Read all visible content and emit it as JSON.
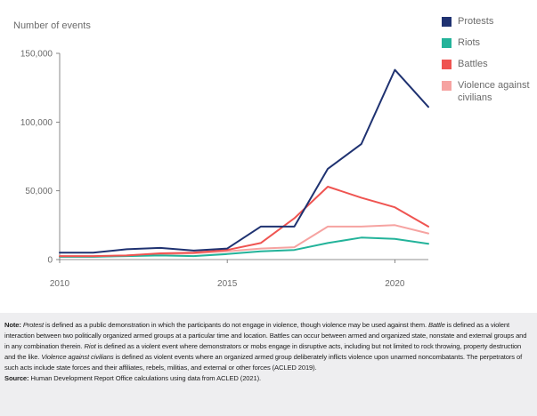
{
  "chart_data": {
    "type": "line",
    "ylabel": "Number of events",
    "xlabel": "",
    "x": [
      2010,
      2011,
      2012,
      2013,
      2014,
      2015,
      2016,
      2017,
      2018,
      2019,
      2020,
      2021
    ],
    "xlim": [
      2010,
      2021
    ],
    "ylim": [
      0,
      150000
    ],
    "x_ticks": [
      2010,
      2015,
      2020
    ],
    "x_tick_labels": [
      "2010",
      "2015",
      "2020"
    ],
    "y_ticks": [
      0,
      50000,
      100000,
      150000
    ],
    "y_tick_labels": [
      "0",
      "50,000",
      "100,000",
      "150,000"
    ],
    "grid": false,
    "legend_position": "top-right",
    "series": [
      {
        "name": "Protests",
        "color": "#1f3271",
        "values": [
          5000,
          5000,
          7500,
          8500,
          6500,
          8000,
          24000,
          24000,
          66000,
          84000,
          138000,
          111000
        ]
      },
      {
        "name": "Riots",
        "color": "#23b39a",
        "values": [
          2000,
          2000,
          2500,
          3000,
          2500,
          4000,
          6000,
          7000,
          12000,
          16000,
          15000,
          11500
        ]
      },
      {
        "name": "Battles",
        "color": "#ef5451",
        "values": [
          2500,
          2500,
          3000,
          4500,
          5000,
          7000,
          12000,
          30000,
          53000,
          45000,
          38000,
          24000
        ]
      },
      {
        "name": "Violence against civilians",
        "color": "#f6a3a1",
        "values": [
          2000,
          2000,
          3000,
          4000,
          4500,
          6000,
          8000,
          9000,
          24000,
          24000,
          25000,
          19000
        ]
      }
    ]
  },
  "legend": {
    "items": [
      {
        "label": "Protests",
        "color": "#1f3271"
      },
      {
        "label": "Riots",
        "color": "#23b39a"
      },
      {
        "label": "Battles",
        "color": "#ef5451"
      },
      {
        "label": "Violence against civilians",
        "color": "#f6a3a1"
      }
    ]
  },
  "notes": {
    "note_label": "Note:",
    "term_protest": "Protest",
    "text_1": " is defined as a public demonstration in which the participants do not engage in violence, though violence may be used against them.",
    "term_battle": "Battle",
    "text_2": " is defined as a violent interaction between two politically organized armed groups at a particular time and location. Battles can occur between armed and organized state, nonstate and external groups and in any combination therein.",
    "term_riot": "Riot",
    "text_3": " is defined as a violent event where demonstrators or mobs engage in disruptive acts, including but not limited to rock throwing, property destruction and the like.",
    "term_violence": "Violence against civilians",
    "text_4": " is defined as violent events where an organized armed group deliberately inflicts violence upon unarmed noncombatants. The perpetrators of such acts include state forces and their affiliates, rebels, militias, and external or other forces (ACLED 2019).",
    "source_label": "Source:",
    "source_text": " Human Development Report Office calculations using data from ACLED (2021)."
  },
  "colors": {
    "axis": "#6b6b6b",
    "notes_background": "#eeeef0"
  }
}
